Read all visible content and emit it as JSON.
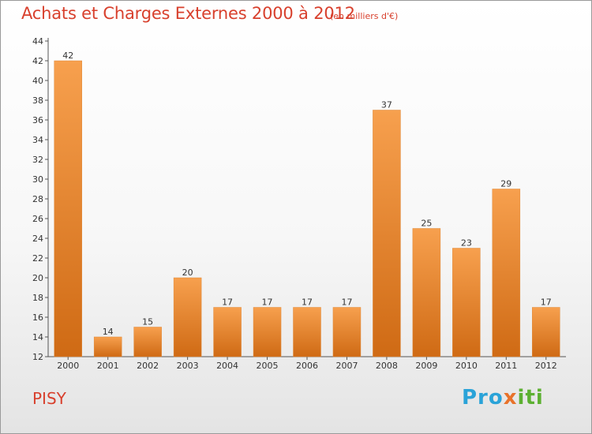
{
  "page": {
    "title": "Achats et Charges Externes 2000 à 2012",
    "unit_note": "(en milliers d'€)",
    "town": "PISY",
    "logo": {
      "part1": "Pro",
      "part2": "x",
      "part3": "iti"
    }
  },
  "colors": {
    "bar_light": "#f7a04e",
    "bar_dark": "#cf6a14",
    "title": "#d8402d",
    "axis": "#555555"
  },
  "chart_data": {
    "type": "bar",
    "categories": [
      "2000",
      "2001",
      "2002",
      "2003",
      "2004",
      "2005",
      "2006",
      "2007",
      "2008",
      "2009",
      "2010",
      "2011",
      "2012"
    ],
    "values": [
      42,
      14,
      15,
      20,
      17,
      17,
      17,
      17,
      37,
      25,
      23,
      29,
      17
    ],
    "title": "Achats et Charges Externes 2000 à 2012",
    "xlabel": "",
    "ylabel": "",
    "ylim": [
      12,
      44
    ],
    "yticks": [
      12,
      14,
      16,
      18,
      20,
      22,
      24,
      26,
      28,
      30,
      32,
      34,
      36,
      38,
      40,
      42,
      44
    ],
    "grid": false,
    "legend": "none"
  }
}
